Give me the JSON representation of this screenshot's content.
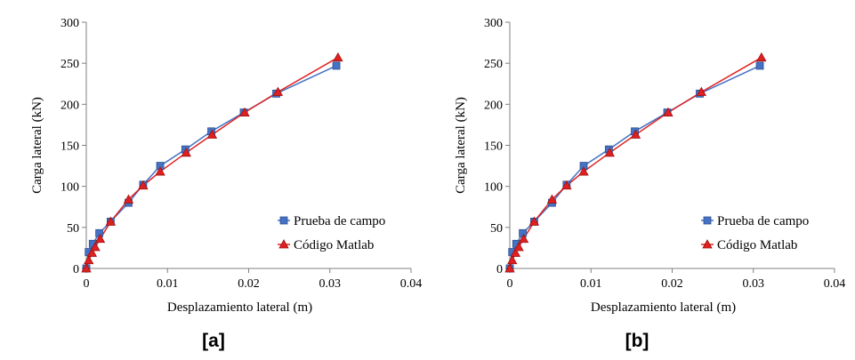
{
  "chart_data": [
    {
      "type": "line",
      "panel_label": "[a]",
      "xlabel": "Desplazamiento lateral (m)",
      "ylabel": "Carga lateral (kN)",
      "xlim": [
        0,
        0.04
      ],
      "ylim": [
        0,
        300
      ],
      "xticks": [
        0,
        0.01,
        0.02,
        0.03,
        0.04
      ],
      "xtick_labels": [
        "0",
        "0.01",
        "0.02",
        "0.03",
        "0.04"
      ],
      "yticks": [
        0,
        50,
        100,
        150,
        200,
        250,
        300
      ],
      "ytick_labels": [
        "0",
        "50",
        "100",
        "150",
        "200",
        "250",
        "300"
      ],
      "grid": false,
      "legend_position": "lower-right",
      "series": [
        {
          "name": "Prueba de campo",
          "color": "#4472c4",
          "marker": "square",
          "x": [
            0,
            0.0003,
            0.0008,
            0.0016,
            0.003,
            0.0052,
            0.007,
            0.0091,
            0.0122,
            0.0154,
            0.0194,
            0.0234,
            0.0308
          ],
          "y": [
            0,
            20,
            30,
            43,
            57,
            80,
            102,
            125,
            145,
            167,
            190,
            213,
            247
          ]
        },
        {
          "name": "Código Matlab",
          "color": "#e02020",
          "marker": "triangle",
          "x": [
            0,
            0.0003,
            0.0007,
            0.0011,
            0.0017,
            0.003,
            0.0052,
            0.007,
            0.0091,
            0.0123,
            0.0155,
            0.0195,
            0.0236,
            0.031
          ],
          "y": [
            0,
            10,
            19,
            26,
            36,
            57,
            84,
            101,
            118,
            141,
            163,
            190,
            215,
            257
          ]
        }
      ]
    },
    {
      "type": "line",
      "panel_label": "[b]",
      "xlabel": "Desplazamiento lateral (m)",
      "ylabel": "Carga lateral (kN)",
      "xlim": [
        0,
        0.04
      ],
      "ylim": [
        0,
        300
      ],
      "xticks": [
        0,
        0.01,
        0.02,
        0.03,
        0.04
      ],
      "xtick_labels": [
        "0",
        "0.01",
        "0.02",
        "0.03",
        "0.04"
      ],
      "yticks": [
        0,
        50,
        100,
        150,
        200,
        250,
        300
      ],
      "ytick_labels": [
        "0",
        "50",
        "100",
        "150",
        "200",
        "250",
        "300"
      ],
      "grid": false,
      "legend_position": "lower-right",
      "series": [
        {
          "name": "Prueba de campo",
          "color": "#4472c4",
          "marker": "square",
          "x": [
            0,
            0.0003,
            0.0008,
            0.0016,
            0.003,
            0.0052,
            0.007,
            0.0091,
            0.0122,
            0.0154,
            0.0194,
            0.0234,
            0.0308
          ],
          "y": [
            0,
            20,
            30,
            43,
            57,
            80,
            102,
            125,
            145,
            167,
            190,
            213,
            247
          ]
        },
        {
          "name": "Código Matlab",
          "color": "#e02020",
          "marker": "triangle",
          "x": [
            0,
            0.0003,
            0.0007,
            0.0011,
            0.0017,
            0.003,
            0.0052,
            0.007,
            0.0091,
            0.0123,
            0.0155,
            0.0195,
            0.0236,
            0.031
          ],
          "y": [
            0,
            10,
            19,
            26,
            36,
            57,
            84,
            101,
            118,
            141,
            163,
            190,
            215,
            257
          ]
        }
      ]
    }
  ]
}
